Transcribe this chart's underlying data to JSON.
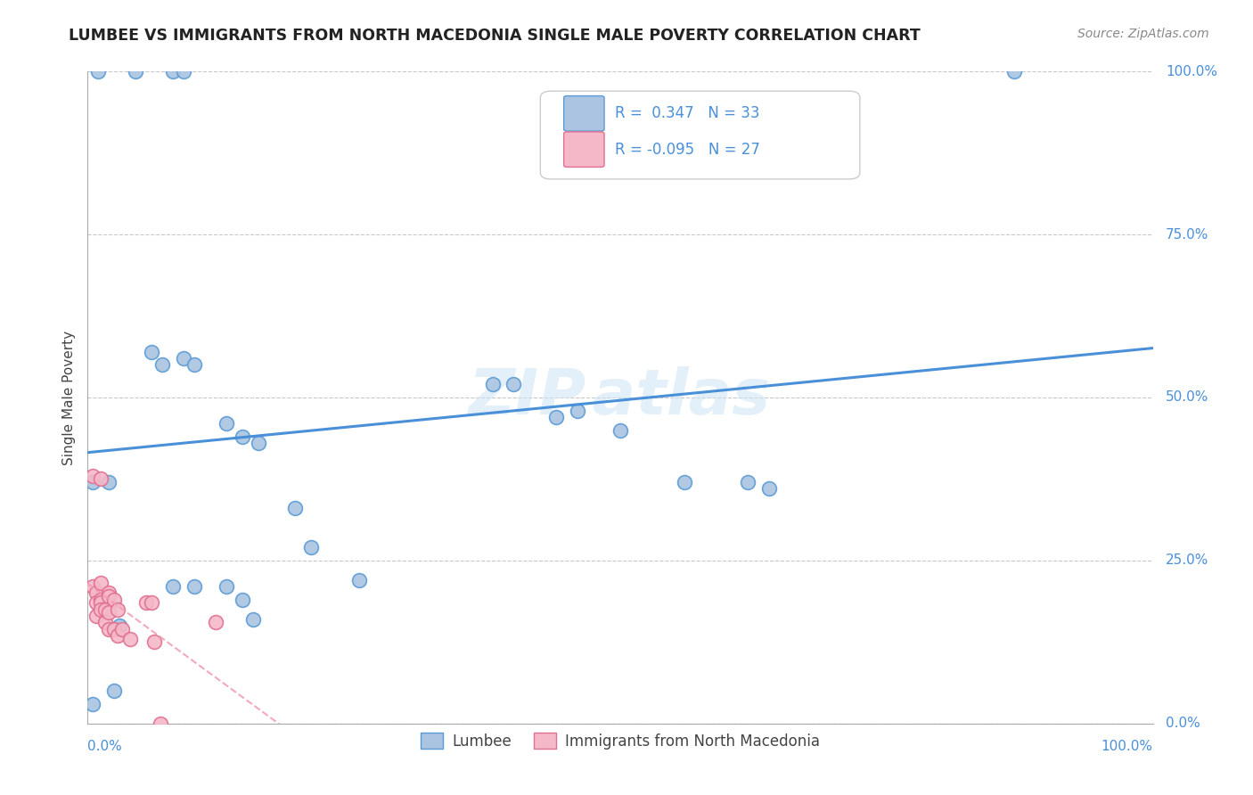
{
  "title": "LUMBEE VS IMMIGRANTS FROM NORTH MACEDONIA SINGLE MALE POVERTY CORRELATION CHART",
  "source": "Source: ZipAtlas.com",
  "ylabel": "Single Male Poverty",
  "ytick_vals": [
    0.0,
    0.25,
    0.5,
    0.75,
    1.0
  ],
  "ytick_labels": [
    "0.0%",
    "25.0%",
    "50.0%",
    "75.0%",
    "100.0%"
  ],
  "lumbee_r": 0.347,
  "lumbee_n": 33,
  "macedonia_r": -0.095,
  "macedonia_n": 27,
  "lumbee_color": "#aac4e2",
  "lumbee_edge_color": "#5b9bd5",
  "macedonia_color": "#f5b8c8",
  "macedonia_edge_color": "#e07090",
  "lumbee_line_color": "#4a90d9",
  "macedonia_line_color": "#f09ab0",
  "background_color": "#ffffff",
  "lumbee_x": [
    0.01,
    0.045,
    0.08,
    0.09,
    0.005,
    0.02,
    0.06,
    0.07,
    0.09,
    0.1,
    0.13,
    0.145,
    0.16,
    0.195,
    0.21,
    0.255,
    0.38,
    0.4,
    0.44,
    0.46,
    0.5,
    0.56,
    0.62,
    0.64,
    0.87,
    0.08,
    0.1,
    0.13,
    0.145,
    0.155,
    0.025,
    0.005,
    0.03
  ],
  "lumbee_y": [
    1.0,
    1.0,
    1.0,
    1.0,
    0.37,
    0.37,
    0.57,
    0.55,
    0.56,
    0.55,
    0.46,
    0.44,
    0.43,
    0.33,
    0.27,
    0.22,
    0.52,
    0.52,
    0.47,
    0.48,
    0.45,
    0.37,
    0.37,
    0.36,
    1.0,
    0.21,
    0.21,
    0.21,
    0.19,
    0.16,
    0.05,
    0.03,
    0.15
  ],
  "macedonia_x": [
    0.005,
    0.005,
    0.008,
    0.008,
    0.008,
    0.012,
    0.012,
    0.012,
    0.012,
    0.012,
    0.016,
    0.016,
    0.02,
    0.02,
    0.02,
    0.02,
    0.025,
    0.025,
    0.028,
    0.028,
    0.032,
    0.04,
    0.055,
    0.06,
    0.062,
    0.068,
    0.12
  ],
  "macedonia_y": [
    0.38,
    0.21,
    0.2,
    0.185,
    0.165,
    0.375,
    0.215,
    0.19,
    0.185,
    0.175,
    0.175,
    0.155,
    0.2,
    0.195,
    0.17,
    0.145,
    0.19,
    0.145,
    0.175,
    0.135,
    0.145,
    0.13,
    0.185,
    0.185,
    0.125,
    0.0,
    0.155
  ]
}
